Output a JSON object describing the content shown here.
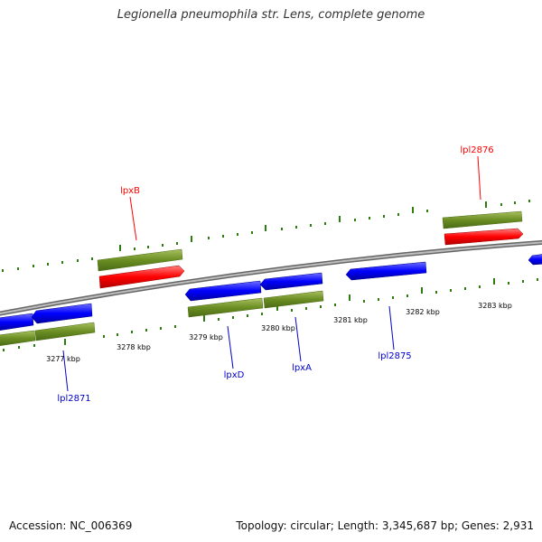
{
  "title": "Legionella pneumophila str. Lens, complete genome",
  "footer": {
    "accession": "Accession: NC_006369",
    "summary": "Topology: circular; Length: 3,345,687 bp; Genes: 2,931"
  },
  "colors": {
    "backbone": "#8a8a8a",
    "forward_cds": "#ff0000",
    "reverse_cds": "#0000ff",
    "gene_feature": "#6b8e23",
    "ticks": "#2e7d10"
  },
  "ruler": {
    "unit": "kbp",
    "labels": [
      "3277 kbp",
      "3278 kbp",
      "3279 kbp",
      "3280 kbp",
      "3281 kbp",
      "3282 kbp",
      "3283 kbp"
    ]
  },
  "genes": {
    "forward": [
      {
        "name": "lpxB",
        "label_color": "#ff0000"
      },
      {
        "name": "lpl2876",
        "label_color": "#ff0000"
      }
    ],
    "reverse": [
      {
        "name": "lpl2871"
      },
      {
        "name": "lpxD"
      },
      {
        "name": "lpxA"
      },
      {
        "name": "lpl2875"
      }
    ]
  }
}
